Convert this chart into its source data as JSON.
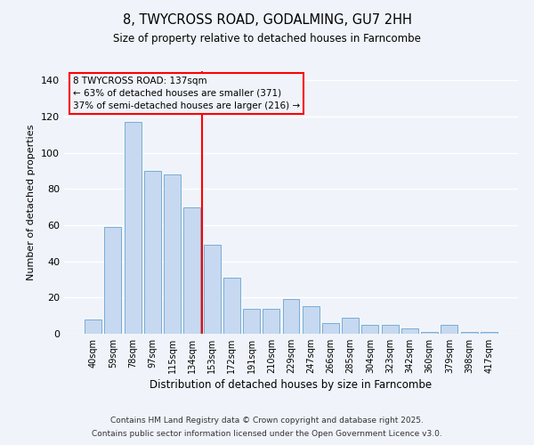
{
  "title": "8, TWYCROSS ROAD, GODALMING, GU7 2HH",
  "subtitle": "Size of property relative to detached houses in Farncombe",
  "xlabel": "Distribution of detached houses by size in Farncombe",
  "ylabel": "Number of detached properties",
  "categories": [
    "40sqm",
    "59sqm",
    "78sqm",
    "97sqm",
    "115sqm",
    "134sqm",
    "153sqm",
    "172sqm",
    "191sqm",
    "210sqm",
    "229sqm",
    "247sqm",
    "266sqm",
    "285sqm",
    "304sqm",
    "323sqm",
    "342sqm",
    "360sqm",
    "379sqm",
    "398sqm",
    "417sqm"
  ],
  "values": [
    8,
    59,
    117,
    90,
    88,
    70,
    49,
    31,
    14,
    14,
    19,
    15,
    6,
    9,
    5,
    5,
    3,
    1,
    5,
    1,
    1
  ],
  "bar_color": "#c6d9f0",
  "bar_edgecolor": "#7aadd4",
  "vline_x": 5.5,
  "annotation_title": "8 TWYCROSS ROAD: 137sqm",
  "annotation_line1": "← 63% of detached houses are smaller (371)",
  "annotation_line2": "37% of semi-detached houses are larger (216) →",
  "ylim": [
    0,
    145
  ],
  "yticks": [
    0,
    20,
    40,
    60,
    80,
    100,
    120,
    140
  ],
  "footer_line1": "Contains HM Land Registry data © Crown copyright and database right 2025.",
  "footer_line2": "Contains public sector information licensed under the Open Government Licence v3.0.",
  "background_color": "#f0f4fa",
  "grid_color": "#ffffff"
}
